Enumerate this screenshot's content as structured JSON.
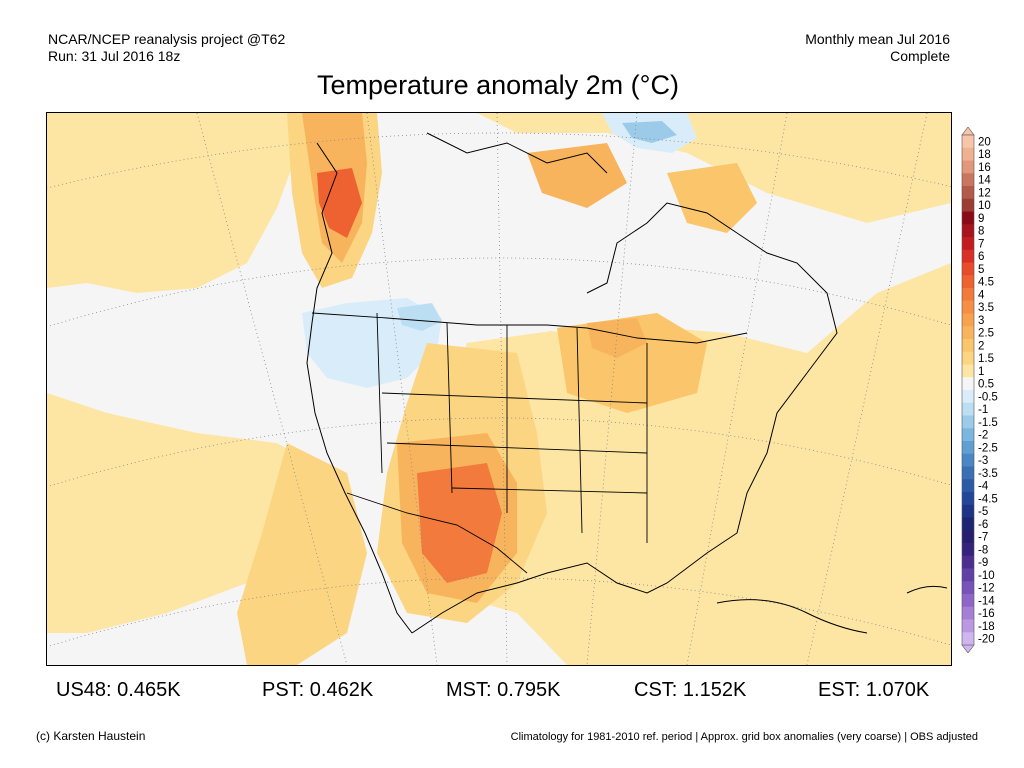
{
  "header": {
    "left_line1": "NCAR/NCEP reanalysis project @T62",
    "left_line2": "Run: 31 Jul 2016 18z",
    "right_line1": "Monthly mean Jul 2016",
    "right_line2": "Complete"
  },
  "title": "Temperature anomaly 2m (°C)",
  "colors": {
    "land_border": "#000000",
    "background": "#ffffff"
  },
  "map": {
    "region": "North America",
    "projection": "Lambert conformal (approx.)",
    "contour_levels": [
      "20",
      "18",
      "16",
      "14",
      "12",
      "10",
      "9",
      "8",
      "7",
      "6",
      "5",
      "4.5",
      "4",
      "3.5",
      "3",
      "2.5",
      "2",
      "1.5",
      "1",
      "0.5",
      "-0.5",
      "-1",
      "-1.5",
      "-2",
      "-2.5",
      "-3",
      "-3.5",
      "-4",
      "-4.5",
      "-5",
      "-6",
      "-7",
      "-8",
      "-9",
      "-10",
      "-12",
      "-14",
      "-16",
      "-18",
      "-20"
    ],
    "level_colors": [
      "#f7c6a8",
      "#f0b190",
      "#e3977a",
      "#c97560",
      "#b45a48",
      "#9c3d34",
      "#8b0a15",
      "#a8141c",
      "#c21c1f",
      "#d92f26",
      "#e84a2c",
      "#ee6232",
      "#f17a3c",
      "#f48f45",
      "#f6a24f",
      "#f8b45c",
      "#fac56b",
      "#fbd582",
      "#fde5a4",
      "#f5f5f5",
      "#d9ecf9",
      "#bcdef3",
      "#9ccbea",
      "#7cb6df",
      "#5f9fd2",
      "#4a87c4",
      "#3a6fb5",
      "#2d5aa7",
      "#244698",
      "#1e3586",
      "#1c2572",
      "#261e6e",
      "#34227c",
      "#4a2f90",
      "#6140a6",
      "#7752b8",
      "#8d66c8",
      "#a57fd6",
      "#bb99e2",
      "#d0b6ee"
    ]
  },
  "stats": [
    {
      "label": "US48: 0.465K"
    },
    {
      "label": "PST: 0.462K"
    },
    {
      "label": "MST: 0.795K"
    },
    {
      "label": "CST: 1.152K"
    },
    {
      "label": "EST: 1.070K"
    }
  ],
  "footer": {
    "credit": "(c) Karsten Haustein",
    "note": "Climatology for 1981-2010 ref. period | Approx. grid box anomalies (very coarse) | OBS adjusted"
  }
}
